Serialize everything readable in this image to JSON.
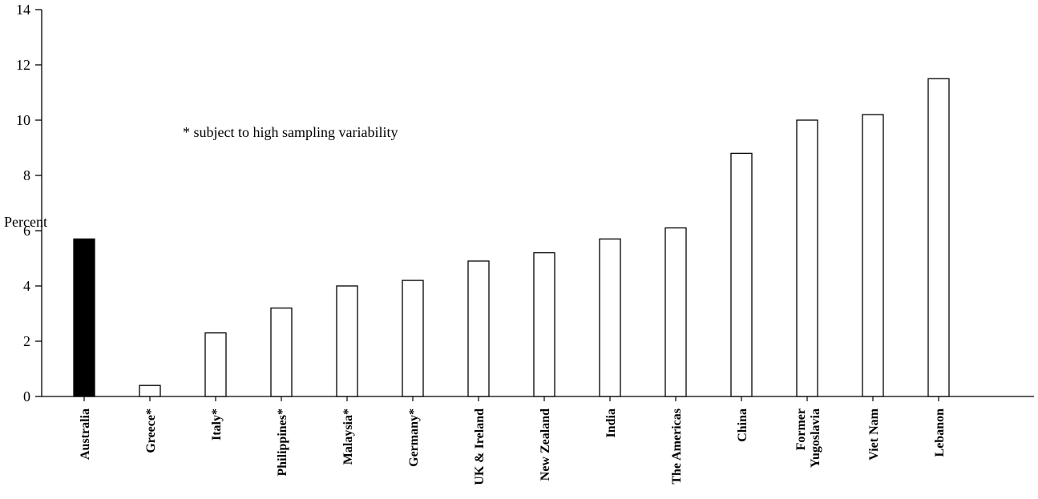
{
  "chart_data": {
    "type": "bar",
    "ylabel": "Percent",
    "xlabel": "",
    "ylim": [
      0,
      14
    ],
    "yticks": [
      "0",
      "2",
      "4",
      "6",
      "8",
      "10",
      "12",
      "14"
    ],
    "categories": [
      "Australia",
      "Greece*",
      "Italy*",
      "Philippines*",
      "Malaysia*",
      "Germany*",
      "UK & Ireland",
      "New Zealand",
      "India",
      "The Americas",
      "China",
      "Former\nYugoslavia",
      "Viet Nam",
      "Lebanon"
    ],
    "values": [
      5.7,
      0.4,
      2.3,
      3.2,
      4.0,
      4.2,
      4.9,
      5.2,
      5.7,
      6.1,
      8.8,
      10.0,
      10.2,
      11.5
    ],
    "bar_fills": [
      "#000000",
      "#ffffff",
      "#ffffff",
      "#ffffff",
      "#ffffff",
      "#ffffff",
      "#ffffff",
      "#ffffff",
      "#ffffff",
      "#ffffff",
      "#ffffff",
      "#ffffff",
      "#ffffff",
      "#ffffff"
    ],
    "annotation": "* subject to high sampling variability",
    "grid": false
  }
}
